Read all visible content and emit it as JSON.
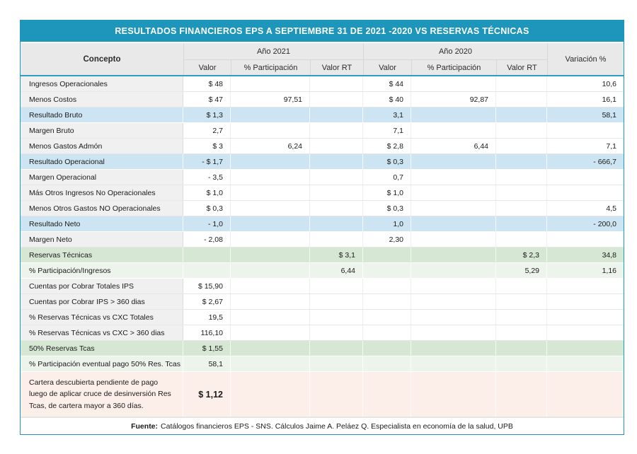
{
  "title": "RESULTADOS FINANCIEROS EPS A SEPTIEMBRE 31 DE 2021 -2020 VS RESERVAS TÉCNICAS",
  "colors": {
    "accent_teal": "#1E96BC",
    "header_gray": "#E9E9E9",
    "highlight_blue": "#CDE5F2",
    "highlight_green": "#D6E8D4",
    "highlight_green_light": "#EDF4EB",
    "highlight_pink": "#FCEFE9"
  },
  "header": {
    "concept": "Concepto",
    "year_2021": "Año 2021",
    "year_2020": "Año 2020",
    "subcols": [
      "Valor",
      "% Participación",
      "Valor RT"
    ],
    "variation": "Variación %"
  },
  "chart_data": {
    "type": "table",
    "columns": [
      "Concepto",
      "Año 2021 Valor",
      "Año 2021 % Participación",
      "Año 2021 Valor RT",
      "Año 2020 Valor",
      "Año 2020 % Participación",
      "Año 2020 Valor RT",
      "Variación %"
    ],
    "rows": [
      {
        "concept": "Ingresos Operacionales",
        "v2021": "$ 48",
        "p2021": "",
        "rt2021": "",
        "v2020": "$ 44",
        "p2020": "",
        "rt2020": "",
        "variation": "10,6",
        "style": ""
      },
      {
        "concept": "Menos Costos",
        "v2021": "$ 47",
        "p2021": "97,51",
        "rt2021": "",
        "v2020": "$ 40",
        "p2020": "92,87",
        "rt2020": "",
        "variation": "16,1",
        "style": ""
      },
      {
        "concept": "Resultado Bruto",
        "v2021": "$ 1,3",
        "p2021": "",
        "rt2021": "",
        "v2020": "3,1",
        "p2020": "",
        "rt2020": "",
        "variation": "58,1",
        "style": "blue"
      },
      {
        "concept": "Margen Bruto",
        "v2021": "2,7",
        "p2021": "",
        "rt2021": "",
        "v2020": "7,1",
        "p2020": "",
        "rt2020": "",
        "variation": "",
        "style": ""
      },
      {
        "concept": "Menos Gastos Admón",
        "v2021": "$ 3",
        "p2021": "6,24",
        "rt2021": "",
        "v2020": "$ 2,8",
        "p2020": "6,44",
        "rt2020": "",
        "variation": "7,1",
        "style": ""
      },
      {
        "concept": "Resultado Operacional",
        "v2021": "- $ 1,7",
        "p2021": "",
        "rt2021": "",
        "v2020": "$ 0,3",
        "p2020": "",
        "rt2020": "",
        "variation": "- 666,7",
        "style": "blue"
      },
      {
        "concept": "Margen Operacional",
        "v2021": "- 3,5",
        "p2021": "",
        "rt2021": "",
        "v2020": "0,7",
        "p2020": "",
        "rt2020": "",
        "variation": "",
        "style": ""
      },
      {
        "concept": "Más Otros Ingresos No Operacionales",
        "v2021": "$ 1,0",
        "p2021": "",
        "rt2021": "",
        "v2020": "$ 1,0",
        "p2020": "",
        "rt2020": "",
        "variation": "",
        "style": ""
      },
      {
        "concept": "Menos Otros Gastos NO Operacionales",
        "v2021": "$ 0,3",
        "p2021": "",
        "rt2021": "",
        "v2020": "$ 0,3",
        "p2020": "",
        "rt2020": "",
        "variation": "4,5",
        "style": ""
      },
      {
        "concept": "Resultado Neto",
        "v2021": "- 1,0",
        "p2021": "",
        "rt2021": "",
        "v2020": "1,0",
        "p2020": "",
        "rt2020": "",
        "variation": "- 200,0",
        "style": "blue"
      },
      {
        "concept": "Margen Neto",
        "v2021": "- 2,08",
        "p2021": "",
        "rt2021": "",
        "v2020": "2,30",
        "p2020": "",
        "rt2020": "",
        "variation": "",
        "style": ""
      },
      {
        "concept": "Reservas Técnicas",
        "v2021": "",
        "p2021": "",
        "rt2021": "$ 3,1",
        "v2020": "",
        "p2020": "",
        "rt2020": "$ 2,3",
        "variation": "34,8",
        "style": "green"
      },
      {
        "concept": "% Participación/Ingresos",
        "v2021": "",
        "p2021": "",
        "rt2021": "6,44",
        "v2020": "",
        "p2020": "",
        "rt2020": "5,29",
        "variation": "1,16",
        "style": "greenlight"
      },
      {
        "concept": "Cuentas por Cobrar  Totales IPS",
        "v2021": "$ 15,90",
        "p2021": "",
        "rt2021": "",
        "v2020": "",
        "p2020": "",
        "rt2020": "",
        "variation": "",
        "style": ""
      },
      {
        "concept": "Cuentas por Cobrar  IPS > 360 dias",
        "v2021": "$ 2,67",
        "p2021": "",
        "rt2021": "",
        "v2020": "",
        "p2020": "",
        "rt2020": "",
        "variation": "",
        "style": ""
      },
      {
        "concept": "% Reservas Técnicas vs CXC Totales",
        "v2021": "19,5",
        "p2021": "",
        "rt2021": "",
        "v2020": "",
        "p2020": "",
        "rt2020": "",
        "variation": "",
        "style": ""
      },
      {
        "concept": "% Reservas Técnicas vs CXC > 360 dias",
        "v2021": "116,10",
        "p2021": "",
        "rt2021": "",
        "v2020": "",
        "p2020": "",
        "rt2020": "",
        "variation": "",
        "style": ""
      },
      {
        "concept": "50% Reservas Tcas",
        "v2021": "$ 1,55",
        "p2021": "",
        "rt2021": "",
        "v2020": "",
        "p2020": "",
        "rt2020": "",
        "variation": "",
        "style": "green"
      },
      {
        "concept": "% Participación eventual pago 50% Res. Tcas",
        "v2021": "58,1",
        "p2021": "",
        "rt2021": "",
        "v2020": "",
        "p2020": "",
        "rt2020": "",
        "variation": "",
        "style": "greenlight"
      },
      {
        "concept": "Cartera descubierta pendiente de pago luego de aplicar cruce de desinversión Res Tcas, de cartera mayor a 360 días.",
        "v2021": "$ 1,12",
        "p2021": "",
        "rt2021": "",
        "v2020": "",
        "p2020": "",
        "rt2020": "",
        "variation": "",
        "style": "pink"
      }
    ]
  },
  "footer": {
    "bold_label": "Fuente:",
    "text": "Catálogos financieros EPS - SNS. Cálculos Jaime A. Peláez Q. Especialista en economía de la  salud, UPB"
  }
}
